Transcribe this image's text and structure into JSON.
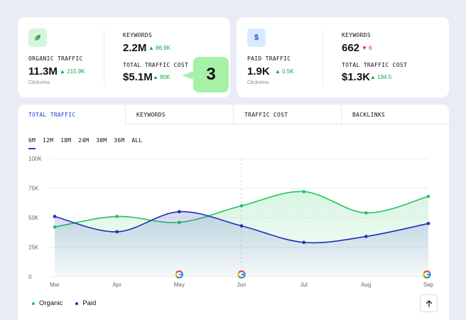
{
  "organic_card": {
    "label": "ORGANIC TRAFFIC",
    "value": "11.3M",
    "delta": "215.9K",
    "sub": "Clicks/mo",
    "icon": "leaf-icon",
    "icon_color": "#16a34a",
    "icon_bg": "#d6f5dc",
    "keywords_label": "KEYWORDS",
    "keywords_value": "2.2M",
    "keywords_delta": "86.9K",
    "cost_label": "TOTAL TRAFFIC COST",
    "cost_value": "$5.1M",
    "cost_delta": "80K"
  },
  "paid_card": {
    "label": "PAID TRAFFIC",
    "value": "1.9K",
    "delta": "0.5K",
    "sub": "Clicks/mo",
    "icon": "dollar-icon",
    "icon_color": "#1d4ed8",
    "icon_bg": "#d9ecff",
    "keywords_label": "KEYWORDS",
    "keywords_value": "662",
    "keywords_delta": "6",
    "cost_label": "TOTAL TRAFFIC COST",
    "cost_value": "$1.3K",
    "cost_delta": "194.5"
  },
  "step_badge": "3",
  "tabs": [
    {
      "label": "TOTAL TRAFFIC",
      "active": true
    },
    {
      "label": "KEYWORDS",
      "active": false
    },
    {
      "label": "TRAFFIC COST",
      "active": false
    },
    {
      "label": "BACKLINKS",
      "active": false
    }
  ],
  "ranges": [
    {
      "label": "6M",
      "active": true
    },
    {
      "label": "12M",
      "active": false
    },
    {
      "label": "18M",
      "active": false
    },
    {
      "label": "24M",
      "active": false
    },
    {
      "label": "30M",
      "active": false
    },
    {
      "label": "36M",
      "active": false
    },
    {
      "label": "ALL",
      "active": false
    }
  ],
  "legend": [
    {
      "name": "Organic",
      "color": "#22c55e"
    },
    {
      "name": "Paid",
      "color": "#1d2fb8"
    }
  ],
  "chart_data": {
    "type": "area",
    "categories": [
      "Mar",
      "Apr",
      "May",
      "Jun",
      "Jul",
      "Aug",
      "Sep"
    ],
    "ylim": [
      0,
      100000
    ],
    "yticks": [
      "0",
      "25K",
      "50K",
      "75K",
      "100K"
    ],
    "series": [
      {
        "name": "Organic",
        "color": "#22c55e",
        "values": [
          42000,
          51000,
          46000,
          60000,
          72000,
          54000,
          68000
        ]
      },
      {
        "name": "Paid",
        "color": "#1d2fb8",
        "values": [
          51000,
          38000,
          55000,
          43000,
          29000,
          34000,
          45000
        ]
      }
    ],
    "google_update_markers": [
      "May",
      "Jun",
      "Sep"
    ],
    "highlight_category": "Jun",
    "grid": true,
    "legend_position": "bottom-left"
  }
}
